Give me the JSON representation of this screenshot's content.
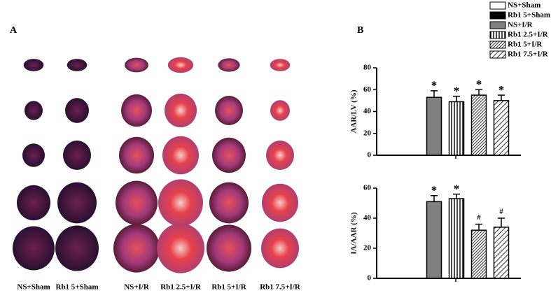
{
  "panel_a": {
    "label": "A",
    "columns": [
      "NS+Sham",
      "Rb1 5+Sham",
      "NS+I/R",
      "Rb1 2.5+I/R",
      "Rb1 5+I/R",
      "Rb1 7.5+I/R"
    ]
  },
  "panel_b": {
    "label": "B",
    "legend": [
      {
        "name": "NS+Sham",
        "pattern": "white"
      },
      {
        "name": "Rb1 5+Sham",
        "pattern": "black"
      },
      {
        "name": "NS+I/R",
        "pattern": "gray"
      },
      {
        "name": "Rb1 2.5+I/R",
        "pattern": "vertical"
      },
      {
        "name": "Rb1 5+I/R",
        "pattern": "dense-diagonal"
      },
      {
        "name": "Rb1 7.5+I/R",
        "pattern": "diagonal"
      }
    ]
  },
  "chart_data": [
    {
      "type": "bar",
      "y_label": "AAR/LV (%)",
      "ylim": [
        0,
        80
      ],
      "yticks": [
        0,
        20,
        40,
        60,
        80
      ],
      "values": [
        null,
        null,
        53,
        49,
        55,
        50
      ],
      "errors": [
        null,
        null,
        6,
        5,
        5,
        5
      ],
      "annotations": [
        null,
        null,
        "*",
        "*",
        "*",
        "*"
      ]
    },
    {
      "type": "bar",
      "y_label": "IA/AAR (%)",
      "ylim": [
        0,
        60
      ],
      "yticks": [
        0,
        20,
        40,
        60
      ],
      "values": [
        null,
        null,
        51,
        53,
        32,
        34
      ],
      "errors": [
        null,
        null,
        4,
        3,
        4,
        6
      ],
      "annotations": [
        null,
        null,
        "*",
        "*",
        "#",
        "#"
      ]
    }
  ]
}
